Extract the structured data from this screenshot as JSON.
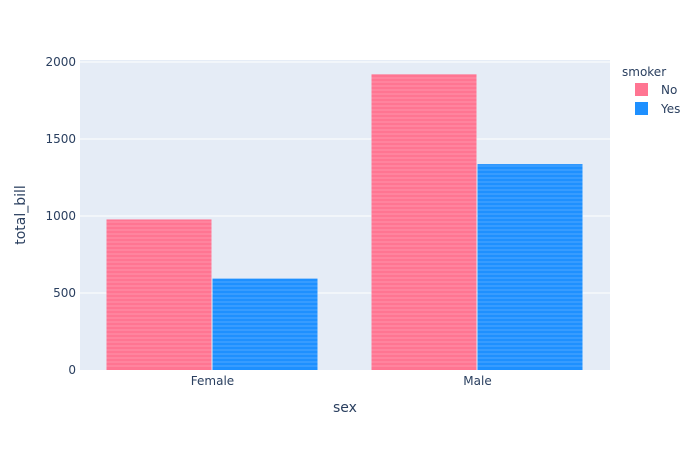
{
  "chart_data": {
    "type": "bar",
    "xlabel": "sex",
    "ylabel": "total_bill",
    "categories": [
      "Female",
      "Male"
    ],
    "ylim": [
      0,
      2000
    ],
    "yticks": [
      0,
      500,
      1000,
      1500,
      2000
    ],
    "grid": true,
    "legend": {
      "title": "smoker",
      "placement": "top-right"
    },
    "series": [
      {
        "name": "No",
        "color": "#ff7592",
        "values": [
          977.68,
          1919.75
        ]
      },
      {
        "name": "Yes",
        "color": "#1e90ff",
        "values": [
          593.27,
          1337.07
        ]
      }
    ]
  }
}
